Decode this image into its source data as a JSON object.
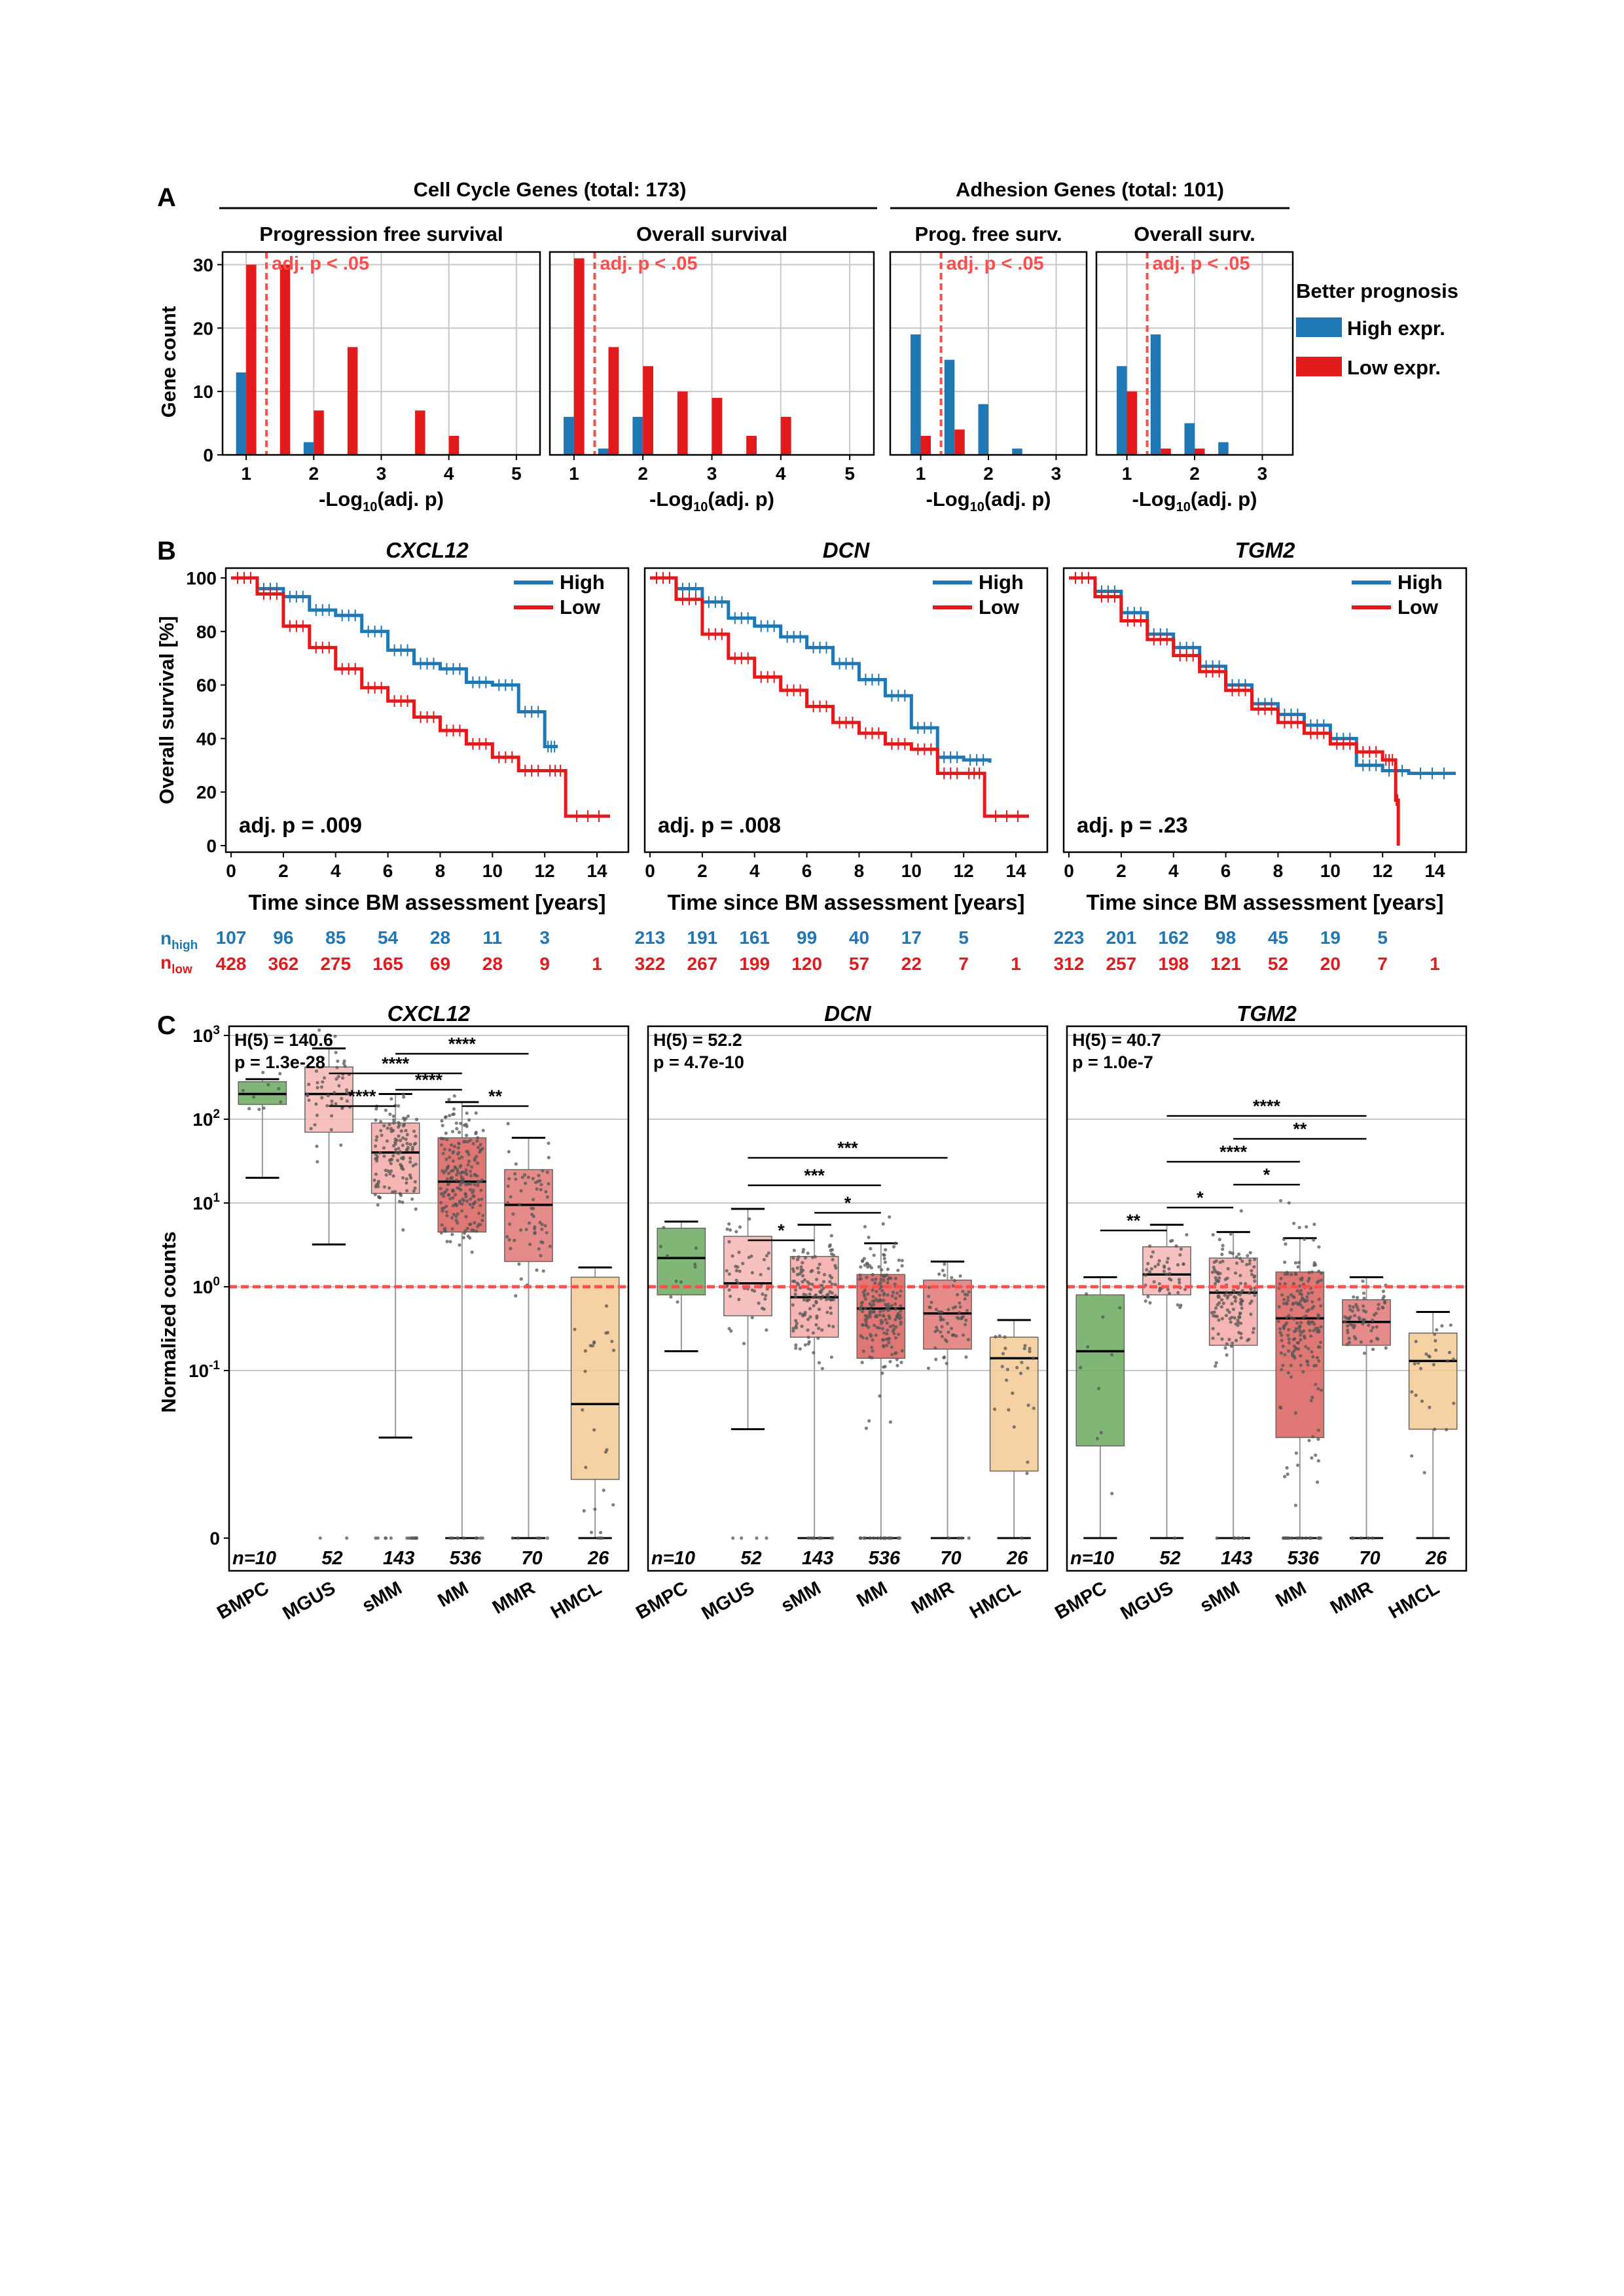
{
  "colors": {
    "high": "#1f77b4",
    "low": "#e31a1c",
    "threshold": "#ff4d4d",
    "BMPC": "#6aaa5e",
    "MGUS": "#f4b6b4",
    "sMM": "#f2a8a6",
    "MM": "#d95f5d",
    "MMR": "#e07877",
    "HMCL": "#f5c993"
  },
  "panel_labels": [
    "A",
    "B",
    "C"
  ],
  "panelA": {
    "group_titles": [
      "Cell Cycle Genes (total: 173)",
      "Adhesion Genes (total: 101)"
    ],
    "ylabel": "Gene count",
    "xlabel_prefix": "-Log",
    "xlabel_sub": "10",
    "xlabel_suffix": "(adj. p)",
    "threshold_label": "adj. p < .05",
    "legend": {
      "title": "Better prognosis",
      "items": [
        "High expr.",
        "Low expr."
      ]
    }
  },
  "panelB": {
    "ylabel": "Overall survival [%]",
    "xlabel": "Time since BM assessment [years]",
    "legend": [
      "High",
      "Low"
    ],
    "risk": {
      "high_label": "n",
      "high_sub": "high",
      "low_label": "n",
      "low_sub": "low"
    }
  },
  "panelC": {
    "ylabel": "Normalized counts",
    "n_prefix": "n=",
    "h_lines": [
      "H(5) = 140.6",
      "p = 1.3e-28",
      "H(5) = 52.2",
      "p = 4.7e-10",
      "H(5) = 40.7",
      "p = 1.0e-7"
    ]
  },
  "chart_data": [
    {
      "id": "A1",
      "type": "bar",
      "title": "Progression free survival",
      "x": [
        1,
        1.5,
        2,
        2.5,
        3,
        3.5,
        4,
        4.5,
        5
      ],
      "series": [
        {
          "name": "High expr.",
          "values": [
            13,
            0,
            2,
            0,
            0,
            0,
            0,
            0,
            0
          ]
        },
        {
          "name": "Low expr.",
          "values": [
            30,
            30,
            7,
            17,
            0,
            7,
            3,
            0,
            0
          ]
        }
      ],
      "xticks": [
        1,
        2,
        3,
        4,
        5
      ],
      "yticks": [
        0,
        10,
        20,
        30
      ],
      "ylim": [
        0,
        32
      ],
      "threshold": 1.3
    },
    {
      "id": "A2",
      "type": "bar",
      "title": "Overall survival",
      "x": [
        1,
        1.5,
        2,
        2.5,
        3,
        3.5,
        4,
        4.5,
        5
      ],
      "series": [
        {
          "name": "High expr.",
          "values": [
            6,
            1,
            6,
            0,
            0,
            0,
            0,
            0,
            0
          ]
        },
        {
          "name": "Low expr.",
          "values": [
            31,
            17,
            14,
            10,
            9,
            3,
            6,
            0,
            0
          ]
        }
      ],
      "xticks": [
        1,
        2,
        3,
        4,
        5
      ],
      "yticks": [
        0,
        10,
        20,
        30
      ],
      "ylim": [
        0,
        32
      ],
      "threshold": 1.3
    },
    {
      "id": "A3",
      "type": "bar",
      "title": "Prog. free surv.",
      "x": [
        1,
        1.5,
        2,
        2.5,
        3
      ],
      "series": [
        {
          "name": "High expr.",
          "values": [
            19,
            15,
            8,
            1,
            0
          ]
        },
        {
          "name": "Low expr.",
          "values": [
            3,
            4,
            0,
            0,
            0
          ]
        }
      ],
      "xticks": [
        1,
        2,
        3
      ],
      "yticks": [
        0,
        10,
        20,
        30
      ],
      "ylim": [
        0,
        32
      ],
      "threshold": 1.3
    },
    {
      "id": "A4",
      "type": "bar",
      "title": "Overall surv.",
      "x": [
        1,
        1.5,
        2,
        2.5,
        3
      ],
      "series": [
        {
          "name": "High expr.",
          "values": [
            14,
            19,
            5,
            2,
            0
          ]
        },
        {
          "name": "Low expr.",
          "values": [
            10,
            1,
            1,
            0,
            0
          ]
        }
      ],
      "xticks": [
        1,
        2,
        3
      ],
      "yticks": [
        0,
        10,
        20,
        30
      ],
      "ylim": [
        0,
        32
      ],
      "threshold": 1.3
    },
    {
      "id": "B1",
      "type": "line",
      "title": "CXCL12",
      "annotation": "adj. p = .009",
      "xlim": [
        0,
        15
      ],
      "ylim": [
        0,
        100
      ],
      "xticks": [
        0,
        2,
        4,
        6,
        8,
        10,
        12,
        14
      ],
      "yticks": [
        0,
        20,
        40,
        60,
        80,
        100
      ],
      "series": [
        {
          "name": "High",
          "x": [
            0,
            1,
            2,
            3,
            4,
            5,
            6,
            7,
            8,
            9,
            10,
            11,
            12,
            12.5
          ],
          "y": [
            100,
            96,
            93,
            88,
            86,
            80,
            73,
            68,
            66,
            61,
            60,
            50,
            37,
            37
          ]
        },
        {
          "name": "Low",
          "x": [
            0,
            1,
            2,
            3,
            4,
            5,
            6,
            7,
            8,
            9,
            10,
            11,
            12,
            12.8,
            14.5
          ],
          "y": [
            100,
            94,
            82,
            74,
            66,
            59,
            54,
            48,
            43,
            38,
            33,
            28,
            28,
            11,
            11
          ]
        }
      ],
      "risk_x": [
        0,
        2,
        4,
        6,
        8,
        10,
        12,
        14
      ],
      "risk_high": [
        "107",
        "96",
        "85",
        "54",
        "28",
        "11",
        "3",
        ""
      ],
      "risk_low": [
        "428",
        "362",
        "275",
        "165",
        "69",
        "28",
        "9",
        "1"
      ]
    },
    {
      "id": "B2",
      "type": "line",
      "title": "DCN",
      "annotation": "adj. p = .008",
      "xlim": [
        0,
        15
      ],
      "ylim": [
        0,
        100
      ],
      "xticks": [
        0,
        2,
        4,
        6,
        8,
        10,
        12,
        14
      ],
      "yticks": [
        0,
        20,
        40,
        60,
        80,
        100
      ],
      "series": [
        {
          "name": "High",
          "x": [
            0,
            1,
            2,
            3,
            4,
            5,
            6,
            7,
            8,
            9,
            10,
            11,
            12,
            13
          ],
          "y": [
            100,
            96,
            91,
            85,
            82,
            78,
            74,
            68,
            62,
            56,
            44,
            33,
            32,
            31
          ]
        },
        {
          "name": "Low",
          "x": [
            0,
            1,
            2,
            3,
            4,
            5,
            6,
            7,
            8,
            9,
            10,
            11,
            12,
            12.8,
            14.5
          ],
          "y": [
            100,
            92,
            79,
            70,
            63,
            58,
            52,
            46,
            42,
            38,
            36,
            27,
            27,
            11,
            11
          ]
        }
      ],
      "risk_x": [
        0,
        2,
        4,
        6,
        8,
        10,
        12,
        14
      ],
      "risk_high": [
        "213",
        "191",
        "161",
        "99",
        "40",
        "17",
        "5",
        ""
      ],
      "risk_low": [
        "322",
        "267",
        "199",
        "120",
        "57",
        "22",
        "7",
        "1"
      ]
    },
    {
      "id": "B3",
      "type": "line",
      "title": "TGM2",
      "annotation": "adj. p = .23",
      "xlim": [
        0,
        15
      ],
      "ylim": [
        0,
        100
      ],
      "xticks": [
        0,
        2,
        4,
        6,
        8,
        10,
        12,
        14
      ],
      "yticks": [
        0,
        20,
        40,
        60,
        80,
        100
      ],
      "series": [
        {
          "name": "High",
          "x": [
            0,
            1,
            2,
            3,
            4,
            5,
            6,
            7,
            8,
            9,
            10,
            11,
            12,
            13,
            14.8
          ],
          "y": [
            100,
            95,
            87,
            79,
            74,
            67,
            60,
            53,
            49,
            45,
            40,
            30,
            28,
            27,
            27
          ]
        },
        {
          "name": "Low",
          "x": [
            0,
            1,
            2,
            3,
            4,
            5,
            6,
            7,
            8,
            9,
            10,
            11,
            12,
            12.5,
            12.6
          ],
          "y": [
            100,
            93,
            84,
            77,
            71,
            65,
            58,
            51,
            46,
            42,
            38,
            35,
            32,
            17,
            0
          ]
        }
      ],
      "risk_x": [
        0,
        2,
        4,
        6,
        8,
        10,
        12,
        14
      ],
      "risk_high": [
        "223",
        "201",
        "162",
        "98",
        "45",
        "19",
        "5",
        ""
      ],
      "risk_low": [
        "312",
        "257",
        "198",
        "121",
        "52",
        "20",
        "7",
        "1"
      ]
    },
    {
      "id": "C1",
      "type": "box",
      "title": "CXCL12",
      "yscale": "symlog",
      "yticks": [
        "0",
        "10^-1",
        "10^0",
        "10^1",
        "10^2",
        "10^3"
      ],
      "threshold": 1,
      "categories": [
        "BMPC",
        "MGUS",
        "sMM",
        "MM",
        "MMR",
        "HMCL"
      ],
      "n": [
        "10",
        "52",
        "143",
        "536",
        "70",
        "26"
      ],
      "median": [
        200,
        200,
        40,
        18,
        9.5,
        0.08
      ],
      "q1": [
        150,
        70,
        13,
        4.5,
        2,
        0.035
      ],
      "q3": [
        280,
        420,
        90,
        60,
        25,
        1.3
      ],
      "whisker_low": [
        20,
        3.2,
        0.06,
        0,
        0,
        0
      ],
      "whisker_high": [
        300,
        700,
        200,
        160,
        60,
        1.7
      ],
      "brackets": [
        {
          "from": 1,
          "to": 2,
          "level": 0,
          "label": "****"
        },
        {
          "from": 2,
          "to": 3,
          "level": 1,
          "label": "****"
        },
        {
          "from": 1,
          "to": 3,
          "level": 2,
          "label": "****"
        },
        {
          "from": 2,
          "to": 4,
          "level": 3,
          "label": "****"
        },
        {
          "from": 3,
          "to": 4,
          "level": 0,
          "label": "**"
        }
      ]
    },
    {
      "id": "C2",
      "type": "box",
      "title": "DCN",
      "yscale": "symlog",
      "yticks": [
        "0",
        "10^-1",
        "10^0",
        "10^1",
        "10^2",
        "10^3"
      ],
      "threshold": 1,
      "categories": [
        "BMPC",
        "MGUS",
        "sMM",
        "MM",
        "MMR",
        "HMCL"
      ],
      "n": [
        "10",
        "52",
        "143",
        "536",
        "70",
        "26"
      ],
      "median": [
        2.2,
        1.1,
        0.75,
        0.55,
        0.48,
        0.14
      ],
      "q1": [
        0.8,
        0.45,
        0.25,
        0.14,
        0.18,
        0.04
      ],
      "q3": [
        5,
        4,
        2.3,
        1.4,
        1.2,
        0.25
      ],
      "whisker_low": [
        0.17,
        0.065,
        0,
        0,
        0,
        0
      ],
      "whisker_high": [
        6,
        8.5,
        5.5,
        3.3,
        2,
        0.4
      ],
      "brackets": [
        {
          "from": 1,
          "to": 2,
          "level": 0,
          "label": "*"
        },
        {
          "from": 2,
          "to": 3,
          "level": 1,
          "label": "*"
        },
        {
          "from": 1,
          "to": 3,
          "level": 2,
          "label": "***"
        },
        {
          "from": 1,
          "to": 4,
          "level": 3,
          "label": "***"
        }
      ]
    },
    {
      "id": "C3",
      "type": "box",
      "title": "TGM2",
      "yscale": "symlog",
      "yticks": [
        "0",
        "10^-1",
        "10^0",
        "10^1",
        "10^2",
        "10^3"
      ],
      "threshold": 1,
      "categories": [
        "BMPC",
        "MGUS",
        "sMM",
        "MM",
        "MMR",
        "HMCL"
      ],
      "n": [
        "10",
        "52",
        "143",
        "536",
        "70",
        "26"
      ],
      "median": [
        0.17,
        1.4,
        0.85,
        0.42,
        0.38,
        0.13
      ],
      "q1": [
        0.055,
        0.8,
        0.2,
        0.06,
        0.2,
        0.065
      ],
      "q3": [
        0.8,
        3,
        2.2,
        1.5,
        0.7,
        0.28
      ],
      "whisker_low": [
        0,
        0,
        0,
        0,
        0,
        0
      ],
      "whisker_high": [
        1.3,
        5.5,
        4.5,
        3.8,
        1.3,
        0.5
      ],
      "brackets": [
        {
          "from": 0,
          "to": 1,
          "level": 0,
          "label": "**"
        },
        {
          "from": 1,
          "to": 2,
          "level": 1,
          "label": "*"
        },
        {
          "from": 2,
          "to": 3,
          "level": 2,
          "label": "*"
        },
        {
          "from": 1,
          "to": 3,
          "level": 3,
          "label": "****"
        },
        {
          "from": 2,
          "to": 4,
          "level": 4,
          "label": "**"
        },
        {
          "from": 1,
          "to": 4,
          "level": 5,
          "label": "****"
        }
      ]
    }
  ]
}
